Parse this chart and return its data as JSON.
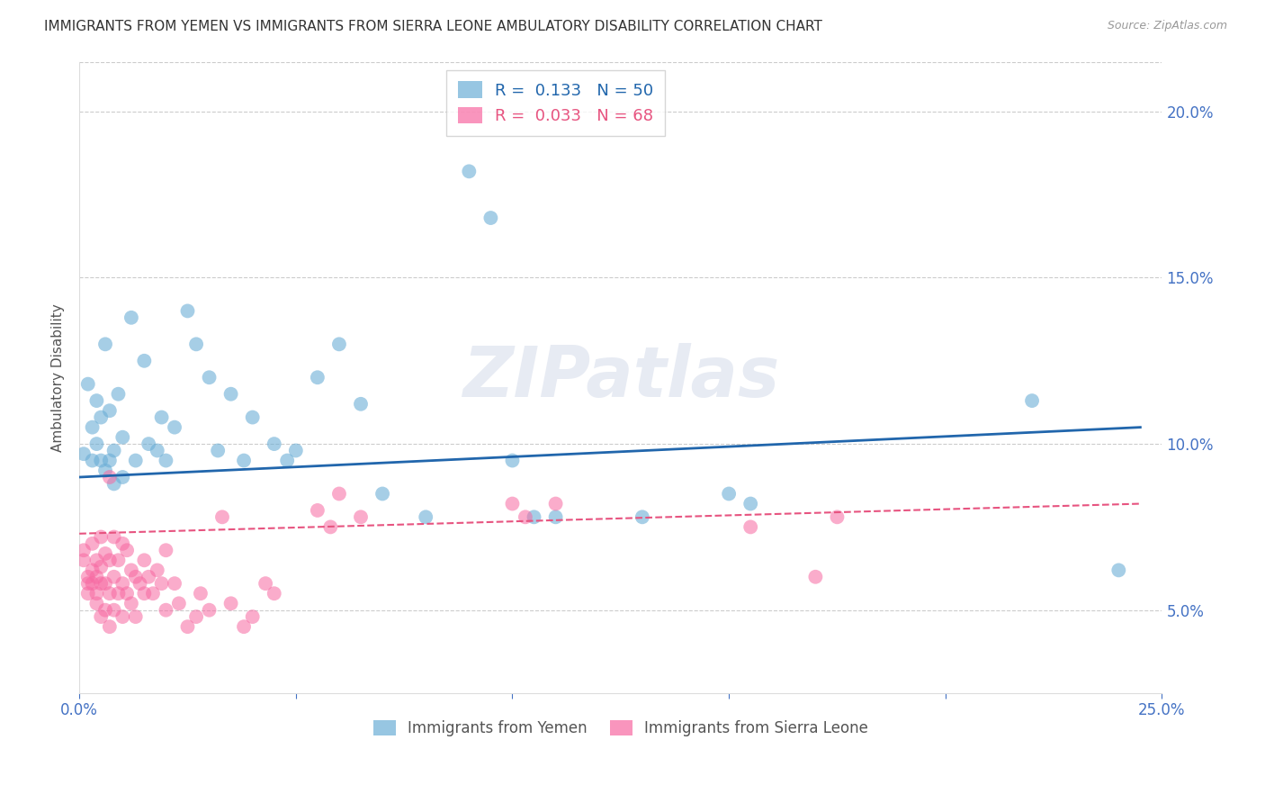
{
  "title": "IMMIGRANTS FROM YEMEN VS IMMIGRANTS FROM SIERRA LEONE AMBULATORY DISABILITY CORRELATION CHART",
  "source": "Source: ZipAtlas.com",
  "ylabel": "Ambulatory Disability",
  "xlim": [
    0.0,
    0.25
  ],
  "ylim": [
    0.025,
    0.215
  ],
  "yticks": [
    0.05,
    0.1,
    0.15,
    0.2
  ],
  "ytick_labels": [
    "5.0%",
    "10.0%",
    "15.0%",
    "20.0%"
  ],
  "xtick_vals": [
    0.0,
    0.05,
    0.1,
    0.15,
    0.2,
    0.25
  ],
  "xtick_labels": [
    "0.0%",
    "",
    "",
    "",
    "",
    "25.0%"
  ],
  "watermark": "ZIPatlas",
  "yemen_color": "#6baed6",
  "sierra_leone_color": "#f768a1",
  "regression_blue": "#2166ac",
  "regression_pink": "#e75480",
  "background_color": "#ffffff",
  "grid_color": "#cccccc",
  "yemen_scatter": [
    [
      0.001,
      0.097
    ],
    [
      0.002,
      0.118
    ],
    [
      0.003,
      0.095
    ],
    [
      0.003,
      0.105
    ],
    [
      0.004,
      0.113
    ],
    [
      0.004,
      0.1
    ],
    [
      0.005,
      0.095
    ],
    [
      0.005,
      0.108
    ],
    [
      0.006,
      0.13
    ],
    [
      0.006,
      0.092
    ],
    [
      0.007,
      0.095
    ],
    [
      0.007,
      0.11
    ],
    [
      0.008,
      0.088
    ],
    [
      0.008,
      0.098
    ],
    [
      0.009,
      0.115
    ],
    [
      0.01,
      0.09
    ],
    [
      0.01,
      0.102
    ],
    [
      0.012,
      0.138
    ],
    [
      0.013,
      0.095
    ],
    [
      0.015,
      0.125
    ],
    [
      0.016,
      0.1
    ],
    [
      0.018,
      0.098
    ],
    [
      0.019,
      0.108
    ],
    [
      0.02,
      0.095
    ],
    [
      0.022,
      0.105
    ],
    [
      0.025,
      0.14
    ],
    [
      0.027,
      0.13
    ],
    [
      0.03,
      0.12
    ],
    [
      0.032,
      0.098
    ],
    [
      0.035,
      0.115
    ],
    [
      0.038,
      0.095
    ],
    [
      0.04,
      0.108
    ],
    [
      0.045,
      0.1
    ],
    [
      0.048,
      0.095
    ],
    [
      0.05,
      0.098
    ],
    [
      0.055,
      0.12
    ],
    [
      0.06,
      0.13
    ],
    [
      0.065,
      0.112
    ],
    [
      0.07,
      0.085
    ],
    [
      0.08,
      0.078
    ],
    [
      0.09,
      0.182
    ],
    [
      0.095,
      0.168
    ],
    [
      0.1,
      0.095
    ],
    [
      0.105,
      0.078
    ],
    [
      0.11,
      0.078
    ],
    [
      0.13,
      0.078
    ],
    [
      0.15,
      0.085
    ],
    [
      0.155,
      0.082
    ],
    [
      0.22,
      0.113
    ],
    [
      0.24,
      0.062
    ]
  ],
  "sierra_scatter": [
    [
      0.001,
      0.065
    ],
    [
      0.001,
      0.068
    ],
    [
      0.002,
      0.058
    ],
    [
      0.002,
      0.06
    ],
    [
      0.002,
      0.055
    ],
    [
      0.003,
      0.07
    ],
    [
      0.003,
      0.062
    ],
    [
      0.003,
      0.058
    ],
    [
      0.004,
      0.065
    ],
    [
      0.004,
      0.06
    ],
    [
      0.004,
      0.055
    ],
    [
      0.004,
      0.052
    ],
    [
      0.005,
      0.072
    ],
    [
      0.005,
      0.063
    ],
    [
      0.005,
      0.058
    ],
    [
      0.005,
      0.048
    ],
    [
      0.006,
      0.067
    ],
    [
      0.006,
      0.058
    ],
    [
      0.006,
      0.05
    ],
    [
      0.007,
      0.09
    ],
    [
      0.007,
      0.065
    ],
    [
      0.007,
      0.055
    ],
    [
      0.007,
      0.045
    ],
    [
      0.008,
      0.072
    ],
    [
      0.008,
      0.06
    ],
    [
      0.008,
      0.05
    ],
    [
      0.009,
      0.065
    ],
    [
      0.009,
      0.055
    ],
    [
      0.01,
      0.07
    ],
    [
      0.01,
      0.058
    ],
    [
      0.01,
      0.048
    ],
    [
      0.011,
      0.068
    ],
    [
      0.011,
      0.055
    ],
    [
      0.012,
      0.062
    ],
    [
      0.012,
      0.052
    ],
    [
      0.013,
      0.06
    ],
    [
      0.013,
      0.048
    ],
    [
      0.014,
      0.058
    ],
    [
      0.015,
      0.065
    ],
    [
      0.015,
      0.055
    ],
    [
      0.016,
      0.06
    ],
    [
      0.017,
      0.055
    ],
    [
      0.018,
      0.062
    ],
    [
      0.019,
      0.058
    ],
    [
      0.02,
      0.068
    ],
    [
      0.02,
      0.05
    ],
    [
      0.022,
      0.058
    ],
    [
      0.023,
      0.052
    ],
    [
      0.025,
      0.045
    ],
    [
      0.027,
      0.048
    ],
    [
      0.028,
      0.055
    ],
    [
      0.03,
      0.05
    ],
    [
      0.033,
      0.078
    ],
    [
      0.035,
      0.052
    ],
    [
      0.038,
      0.045
    ],
    [
      0.04,
      0.048
    ],
    [
      0.043,
      0.058
    ],
    [
      0.045,
      0.055
    ],
    [
      0.055,
      0.08
    ],
    [
      0.058,
      0.075
    ],
    [
      0.06,
      0.085
    ],
    [
      0.065,
      0.078
    ],
    [
      0.1,
      0.082
    ],
    [
      0.103,
      0.078
    ],
    [
      0.11,
      0.082
    ],
    [
      0.155,
      0.075
    ],
    [
      0.17,
      0.06
    ],
    [
      0.175,
      0.078
    ]
  ]
}
